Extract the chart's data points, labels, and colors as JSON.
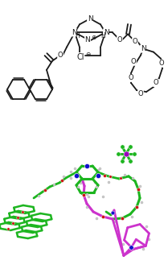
{
  "background_color": "#ffffff",
  "fig_width": 2.09,
  "fig_height": 3.39,
  "dpi": 100,
  "lc": "#1a1a1a",
  "lw": 1.3,
  "green": "#1db520",
  "blue": "#1111cc",
  "red": "#cc1111",
  "magenta": "#cc33cc",
  "gray": "#aaaaaa",
  "lgray": "#cccccc",
  "purple": "#9900bb",
  "darkgreen": "#0a8a0a"
}
